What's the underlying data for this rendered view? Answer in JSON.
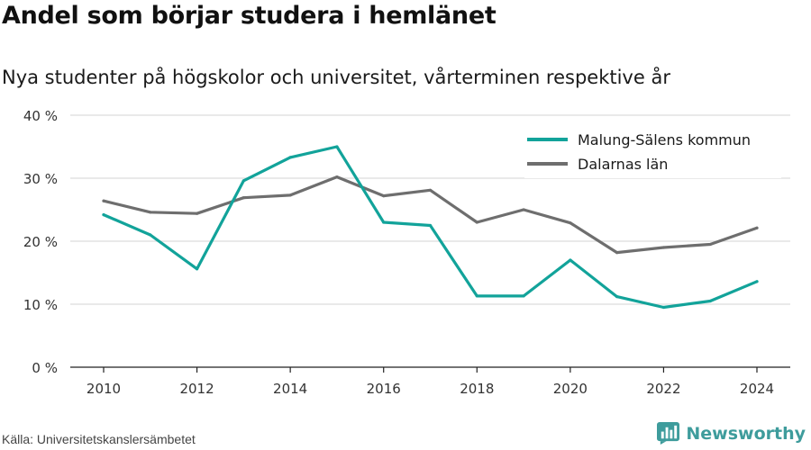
{
  "title": "Andel som börjar studera i hemlänet",
  "subtitle": "Nya studenter på högskolor och universitet, vårterminen respektive år",
  "source": "Källa: Universitetskanslersämbetet",
  "brand": {
    "name": "Newsworthy",
    "icon": "bar-chart-logo-icon",
    "color": "#3e9c9c"
  },
  "chart_data": {
    "type": "line",
    "x": [
      2010,
      2011,
      2012,
      2013,
      2014,
      2015,
      2016,
      2017,
      2018,
      2019,
      2020,
      2021,
      2022,
      2023,
      2024
    ],
    "xticks": [
      "2010",
      "2012",
      "2014",
      "2016",
      "2018",
      "2020",
      "2022",
      "2024"
    ],
    "yticks": [
      "0 %",
      "10 %",
      "20 %",
      "30 %",
      "40 %"
    ],
    "ylim": [
      0,
      40
    ],
    "grid": true,
    "legend_position": "top-right",
    "series": [
      {
        "name": "Malung-Sälens kommun",
        "color": "#12a39a",
        "values": [
          24.2,
          21.0,
          15.6,
          29.6,
          33.3,
          35.0,
          23.0,
          22.5,
          11.3,
          11.3,
          17.0,
          11.2,
          9.5,
          10.5,
          13.6
        ]
      },
      {
        "name": "Dalarnas län",
        "color": "#6e6e6e",
        "values": [
          26.4,
          24.6,
          24.4,
          26.9,
          27.3,
          30.2,
          27.2,
          28.1,
          23.0,
          25.0,
          22.9,
          18.2,
          19.0,
          19.5,
          22.1
        ]
      }
    ]
  }
}
